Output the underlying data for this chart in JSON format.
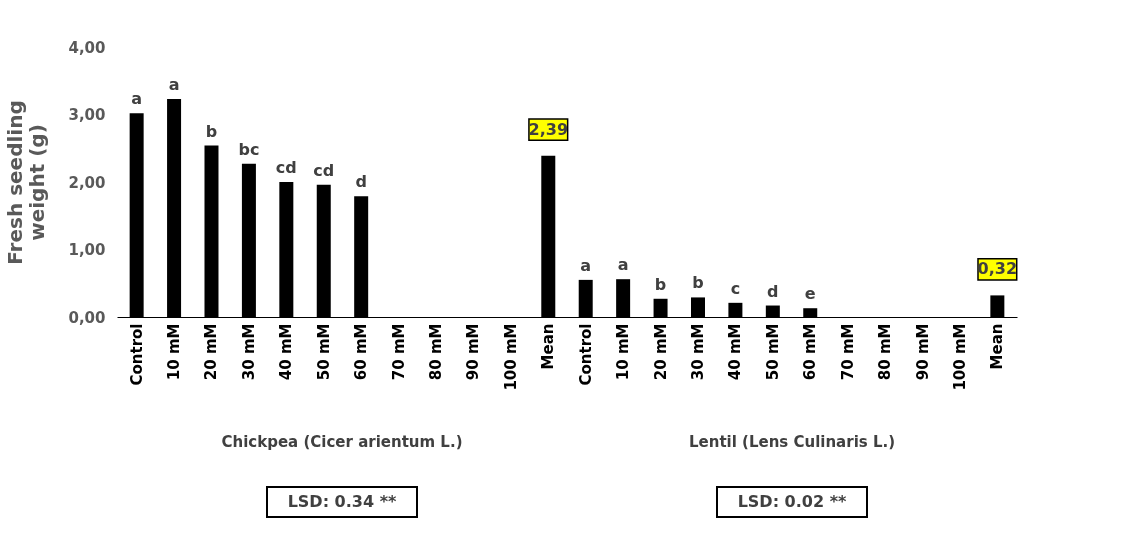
{
  "chart_data": {
    "type": "bar",
    "ylabel": "Fresh seedling weight (g)",
    "categories": [
      "Control",
      "10 mM",
      "20 mM",
      "30 mM",
      "40 mM",
      "50 mM",
      "60 mM",
      "70 mM",
      "80 mM",
      "90 mM",
      "100 mM",
      "Mean",
      "Control",
      "10 mM",
      "20 mM",
      "30 mM",
      "40 mM",
      "50 mM",
      "60 mM",
      "70 mM",
      "80 mM",
      "90 mM",
      "100 mM",
      "Mean"
    ],
    "values": [
      3.02,
      3.23,
      2.54,
      2.27,
      2.0,
      1.96,
      1.79,
      null,
      null,
      null,
      null,
      2.39,
      0.55,
      0.56,
      0.27,
      0.29,
      0.21,
      0.17,
      0.13,
      null,
      null,
      null,
      null,
      0.32
    ],
    "colors": [
      "#000000",
      "#000000",
      "#000000",
      "#000000",
      "#000000",
      "#000000",
      "#000000",
      "#000000",
      "#000000",
      "#000000",
      "#000000",
      "#000000",
      "#000000",
      "#000000",
      "#000000",
      "#000000",
      "#000000",
      "#000000",
      "#000000",
      "#000000",
      "#000000",
      "#000000",
      "#000000",
      "#000000"
    ],
    "value_labels": [
      "a",
      "a",
      "b",
      "bc",
      "cd",
      "cd",
      "d",
      null,
      null,
      null,
      null,
      "2,39",
      "a",
      "a",
      "b",
      "b",
      "c",
      "d",
      "e",
      null,
      null,
      null,
      null,
      "0,32"
    ],
    "ylim": [
      0,
      4
    ],
    "yticks": [
      {
        "value": 0,
        "label": "0,00"
      },
      {
        "value": 1,
        "label": "1,00"
      },
      {
        "value": 2,
        "label": "2,00"
      },
      {
        "value": 3,
        "label": "3,00"
      },
      {
        "value": 4,
        "label": "4,00"
      }
    ],
    "grid": false,
    "annotations": [
      "Chickpea (Cicer arientum L.)",
      "Lentil (Lens Culinaris L.)",
      "LSD: 0.34 **",
      "LSD: 0.02 **"
    ]
  }
}
